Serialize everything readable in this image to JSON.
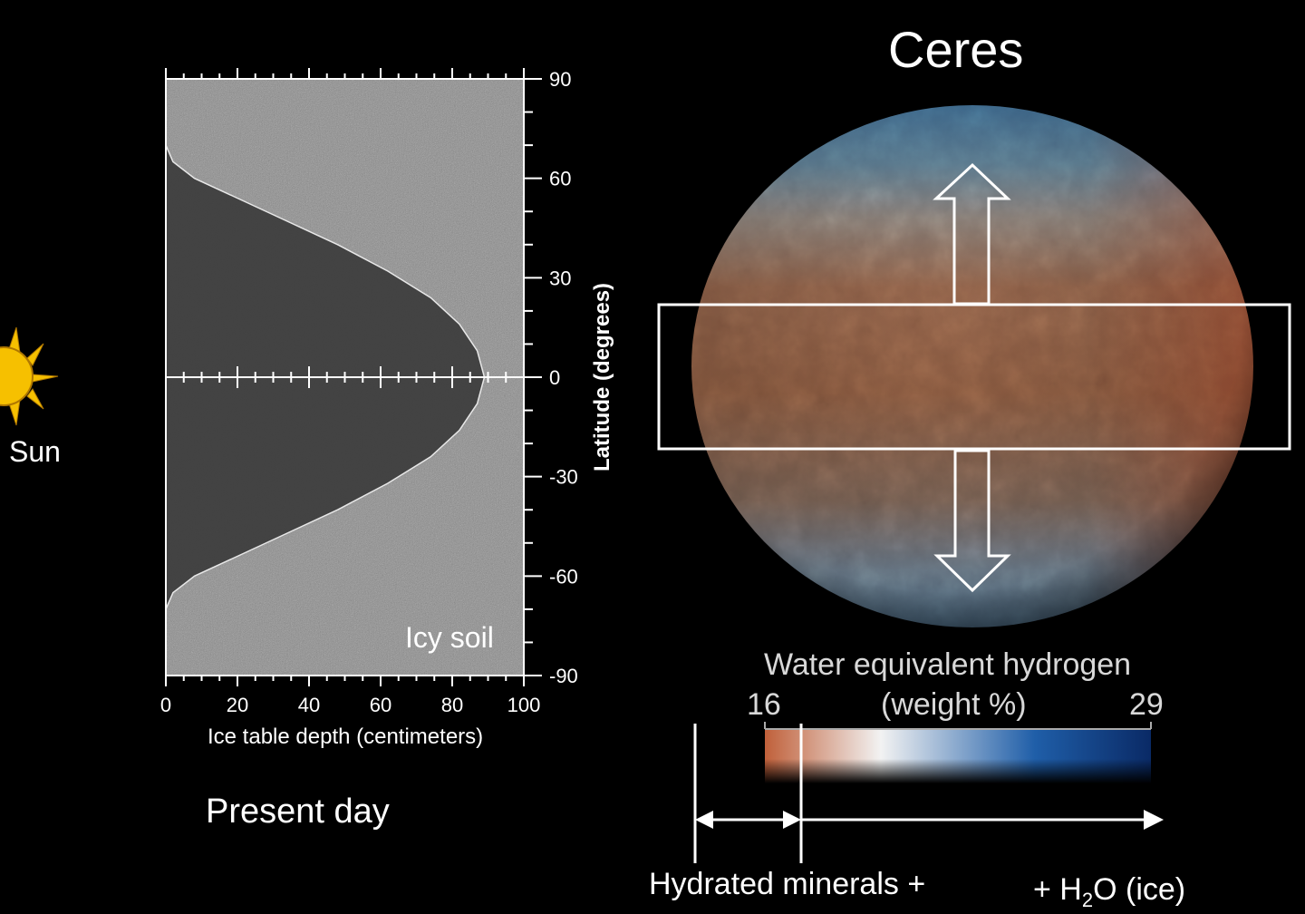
{
  "sun": {
    "label": "Sun",
    "icon": "sun-icon",
    "color": "#f6c000"
  },
  "chart_data": {
    "type": "area",
    "xlabel": "Ice table depth (centimeters)",
    "ylabel": "Latitude (degrees)",
    "xlim": [
      0,
      100
    ],
    "ylim": [
      -90,
      90
    ],
    "xticks": [
      "0",
      "20",
      "40",
      "60",
      "80",
      "100"
    ],
    "yticks": [
      "90",
      "60",
      "30",
      "0",
      "-30",
      "-60",
      "-90"
    ],
    "region_label": "Icy soil",
    "series": [
      {
        "x": [
          0,
          2,
          8,
          18,
          32,
          48,
          62,
          74,
          82,
          87,
          89,
          87,
          82,
          74,
          62,
          48,
          32,
          18,
          8,
          2,
          0
        ],
        "y": [
          70,
          65,
          60,
          55,
          48,
          40,
          32,
          24,
          16,
          8,
          0,
          -8,
          -16,
          -24,
          -32,
          -40,
          -48,
          -55,
          -60,
          -65,
          -70
        ]
      }
    ],
    "grid": false
  },
  "caption": "Present day",
  "ceres": {
    "title": "Ceres",
    "colorbar_title": "Water equivalent hydrogen",
    "colorbar_unit": "(weight %)",
    "colorbar_min": "16",
    "colorbar_max": "29",
    "colorbar_colors": [
      "#c0603a",
      "#f0f0f0",
      "#1a4fa0",
      "#0a2a66"
    ],
    "bracket_left_label": "Hydrated minerals +",
    "bracket_right_label_prefix": "+ H",
    "bracket_right_label_sub": "2",
    "bracket_right_label_suffix": "O (ice)"
  }
}
